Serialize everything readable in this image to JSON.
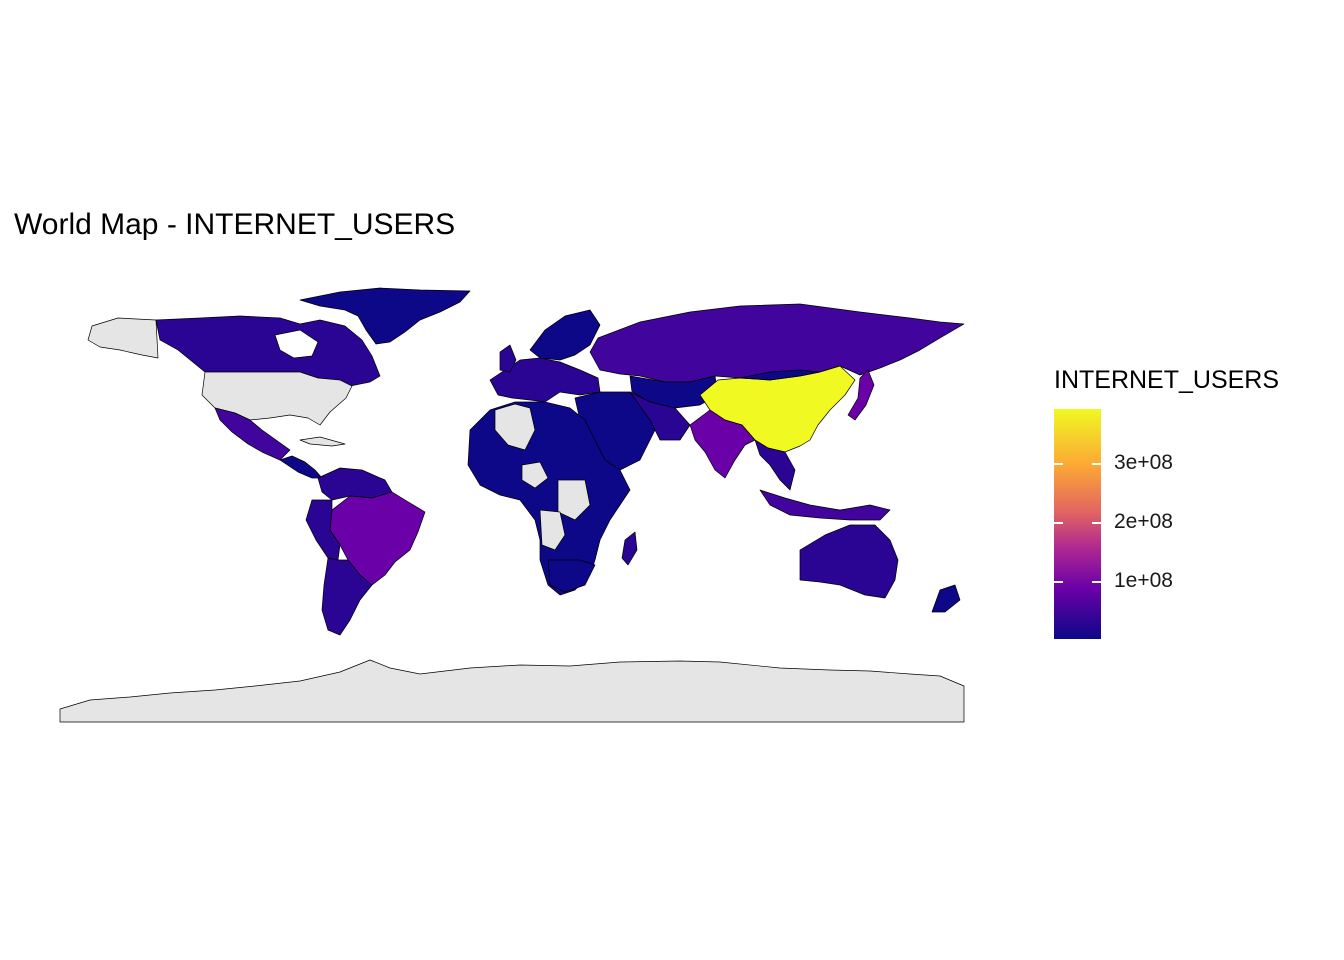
{
  "title": "World Map - INTERNET_USERS",
  "legend": {
    "title": "INTERNET_USERS",
    "ticks": [
      "3e+08",
      "2e+08",
      "1e+08"
    ],
    "colors": [
      "#0d0887",
      "#6a00a8",
      "#b12a90",
      "#e16462",
      "#fca636",
      "#f0f921"
    ]
  },
  "palette": {
    "low": "#0d0887",
    "low2": "#2a0593",
    "mid_low": "#41049d",
    "mid": "#6a00a8",
    "high": "#f0f921",
    "na": "#e5e5e5"
  }
}
